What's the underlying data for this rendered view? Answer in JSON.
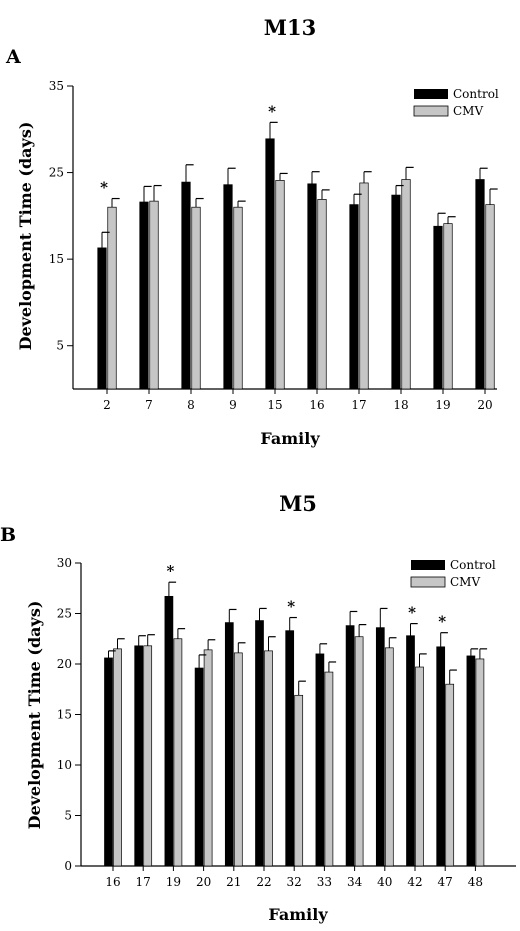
{
  "colors": {
    "control": "#000000",
    "cmv": "#c6c6c6",
    "axis": "#000000"
  },
  "chart_data": [
    {
      "type": "bar",
      "letter": "A",
      "title": "M13",
      "xlabel": "Family",
      "ylabel": "Development Time (days)",
      "ylim": [
        0,
        35
      ],
      "yticks": [
        5,
        15,
        25,
        35
      ],
      "legend": "top-right",
      "categories": [
        "2",
        "7",
        "8",
        "9",
        "15",
        "16",
        "17",
        "18",
        "19",
        "20"
      ],
      "series": [
        {
          "name": "Control",
          "values": [
            16.3,
            21.6,
            23.9,
            23.6,
            28.9,
            23.7,
            21.3,
            22.4,
            18.8,
            24.2
          ],
          "errors": [
            1.8,
            1.8,
            2.0,
            1.9,
            1.9,
            1.4,
            1.2,
            1.1,
            1.5,
            1.3
          ]
        },
        {
          "name": "CMV",
          "values": [
            21.0,
            21.7,
            21.0,
            21.0,
            24.1,
            21.9,
            23.8,
            24.2,
            19.1,
            21.3
          ],
          "errors": [
            1.0,
            1.8,
            1.0,
            0.7,
            0.8,
            1.1,
            1.3,
            1.4,
            0.8,
            1.8
          ]
        }
      ],
      "significant": [
        "2",
        "15"
      ],
      "significance_marker": "*"
    },
    {
      "type": "bar",
      "letter": "B",
      "title": "M5",
      "xlabel": "Family",
      "ylabel": "Development Time (days)",
      "ylim": [
        0,
        30
      ],
      "yticks": [
        0,
        5,
        10,
        15,
        20,
        25,
        30
      ],
      "legend": "top-right",
      "categories": [
        "16",
        "17",
        "19",
        "20",
        "21",
        "22",
        "32",
        "33",
        "34",
        "40",
        "42",
        "47",
        "48"
      ],
      "series": [
        {
          "name": "Control",
          "values": [
            20.6,
            21.8,
            26.7,
            19.6,
            24.1,
            24.3,
            23.3,
            21.0,
            23.8,
            23.6,
            22.8,
            21.7,
            20.8
          ],
          "errors": [
            0.7,
            1.0,
            1.4,
            1.3,
            1.3,
            1.2,
            1.3,
            1.0,
            1.4,
            1.9,
            1.2,
            1.4,
            0.7
          ]
        },
        {
          "name": "CMV",
          "values": [
            21.5,
            21.8,
            22.5,
            21.4,
            21.1,
            21.3,
            16.9,
            19.2,
            22.7,
            21.6,
            19.7,
            18.0,
            20.5
          ],
          "errors": [
            1.0,
            1.1,
            1.0,
            1.0,
            1.0,
            1.4,
            1.4,
            1.0,
            1.2,
            1.0,
            1.3,
            1.4,
            1.0
          ]
        }
      ],
      "significant": [
        "19",
        "32",
        "42",
        "47"
      ],
      "significance_marker": "*"
    }
  ]
}
